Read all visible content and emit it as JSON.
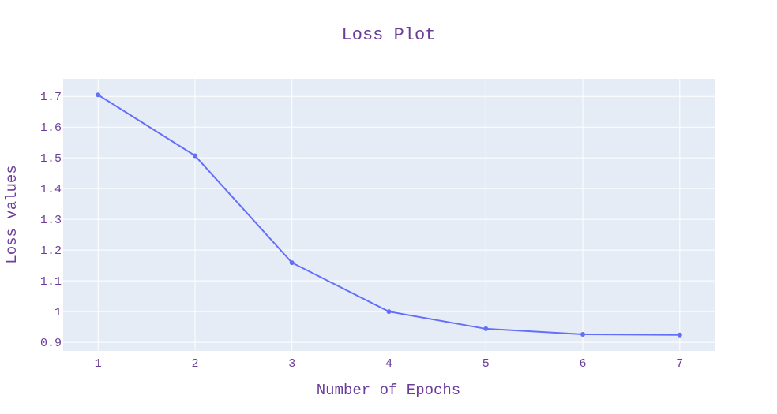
{
  "chart_data": {
    "type": "line",
    "title": "Loss Plot",
    "xlabel": "Number of Epochs",
    "ylabel": "Loss values",
    "x": [
      1,
      2,
      3,
      4,
      5,
      6,
      7
    ],
    "values": [
      1.705,
      1.507,
      1.159,
      1.0,
      0.944,
      0.926,
      0.924
    ],
    "xlim": [
      0.64,
      7.36
    ],
    "ylim": [
      0.872,
      1.757
    ],
    "xticks": [
      1,
      2,
      3,
      4,
      5,
      6,
      7
    ],
    "xtick_labels": [
      "1",
      "2",
      "3",
      "4",
      "5",
      "6",
      "7"
    ],
    "yticks": [
      0.9,
      1.0,
      1.1,
      1.2,
      1.3,
      1.4,
      1.5,
      1.6,
      1.7
    ],
    "ytick_labels": [
      "0.9",
      "1",
      "1.1",
      "1.2",
      "1.3",
      "1.4",
      "1.5",
      "1.6",
      "1.7"
    ],
    "grid": true,
    "legend": "none",
    "colors": {
      "line": "#636efa",
      "plot_bg": "#e5ecf6",
      "grid": "#ffffff",
      "text": "#6a3d9a"
    }
  }
}
